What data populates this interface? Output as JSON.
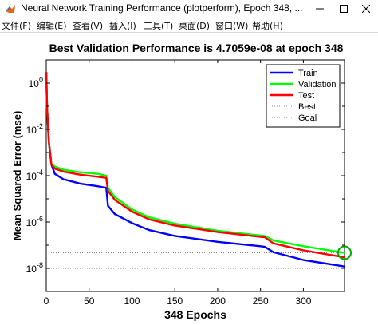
{
  "window": {
    "title": "Neural Network Training Performance (plotperform), Epoch 348, ...",
    "minimize_icon": "minimize-icon",
    "maximize_icon": "maximize-icon",
    "close_icon": "close-icon"
  },
  "menu": {
    "items": [
      {
        "label": "文件(F)"
      },
      {
        "label": "编辑(E)"
      },
      {
        "label": "查看(V)"
      },
      {
        "label": "插入(I)"
      },
      {
        "label": "工具(T)"
      },
      {
        "label": "桌面(D)"
      },
      {
        "label": "窗口(W)"
      },
      {
        "label": "帮助(H)"
      }
    ]
  },
  "chart_data": {
    "type": "line",
    "title": "Best Validation Performance is 4.7059e-08 at epoch 348",
    "xlabel": "348 Epochs",
    "ylabel": "Mean Squared Error  (mse)",
    "yscale": "log",
    "xlim": [
      0,
      348
    ],
    "xticks": [
      0,
      50,
      100,
      150,
      200,
      250,
      300
    ],
    "xtick_labels": [
      "0",
      "50",
      "100",
      "150",
      "200",
      "250",
      "300"
    ],
    "ylim": [
      1e-09,
      10
    ],
    "yticks": [
      1,
      0.01,
      0.0001,
      1e-06,
      1e-08
    ],
    "ytick_labels": [
      [
        "10",
        "0"
      ],
      [
        "10",
        "-2"
      ],
      [
        "10",
        "-4"
      ],
      [
        "10",
        "-6"
      ],
      [
        "10",
        "-8"
      ]
    ],
    "legend_position": "top-right",
    "series": [
      {
        "name": "Train",
        "color": "#0000ff",
        "style": "solid",
        "points": [
          [
            0,
            3
          ],
          [
            1,
            0.08
          ],
          [
            3,
            0.003
          ],
          [
            6,
            0.0003
          ],
          [
            10,
            0.00012
          ],
          [
            20,
            7e-05
          ],
          [
            40,
            4.5e-05
          ],
          [
            60,
            3.5e-05
          ],
          [
            70,
            3e-05
          ],
          [
            72,
            5e-06
          ],
          [
            80,
            2.2e-06
          ],
          [
            100,
            9e-07
          ],
          [
            120,
            4.5e-07
          ],
          [
            150,
            2.5e-07
          ],
          [
            200,
            1.4e-07
          ],
          [
            250,
            9e-08
          ],
          [
            255,
            8.5e-08
          ],
          [
            265,
            5e-08
          ],
          [
            300,
            2.3e-08
          ],
          [
            348,
            1.2e-08
          ]
        ]
      },
      {
        "name": "Validation",
        "color": "#00ff00",
        "style": "solid",
        "points": [
          [
            0,
            3
          ],
          [
            1,
            0.08
          ],
          [
            3,
            0.003
          ],
          [
            6,
            0.0003
          ],
          [
            10,
            0.00025
          ],
          [
            20,
            0.00018
          ],
          [
            40,
            0.00014
          ],
          [
            60,
            0.00012
          ],
          [
            70,
            0.0001
          ],
          [
            72,
            3e-05
          ],
          [
            80,
            1.2e-05
          ],
          [
            100,
            3.5e-06
          ],
          [
            120,
            1.6e-06
          ],
          [
            150,
            8.5e-07
          ],
          [
            200,
            4.2e-07
          ],
          [
            250,
            2.6e-07
          ],
          [
            255,
            2.5e-07
          ],
          [
            265,
            1.6e-07
          ],
          [
            300,
            9e-08
          ],
          [
            348,
            4.7e-08
          ]
        ]
      },
      {
        "name": "Test",
        "color": "#ff0000",
        "style": "solid",
        "points": [
          [
            0,
            3
          ],
          [
            1,
            0.08
          ],
          [
            3,
            0.003
          ],
          [
            6,
            0.0003
          ],
          [
            10,
            0.0002
          ],
          [
            20,
            0.00015
          ],
          [
            40,
            0.00011
          ],
          [
            60,
            9e-05
          ],
          [
            70,
            8e-05
          ],
          [
            72,
            2.2e-05
          ],
          [
            80,
            9e-06
          ],
          [
            100,
            2.8e-06
          ],
          [
            120,
            1.3e-06
          ],
          [
            150,
            7e-07
          ],
          [
            200,
            3.7e-07
          ],
          [
            250,
            2.3e-07
          ],
          [
            255,
            2.2e-07
          ],
          [
            265,
            1.2e-07
          ],
          [
            300,
            6e-08
          ],
          [
            348,
            3e-08
          ]
        ]
      },
      {
        "name": "Best",
        "color": "#808080",
        "style": "dotted",
        "y": 4.7059e-08
      },
      {
        "name": "Goal",
        "color": "#808080",
        "style": "dotted",
        "y": 1e-08
      }
    ],
    "best_marker": {
      "epoch": 348,
      "value": 4.7059e-08,
      "color": "#00aa00"
    }
  }
}
